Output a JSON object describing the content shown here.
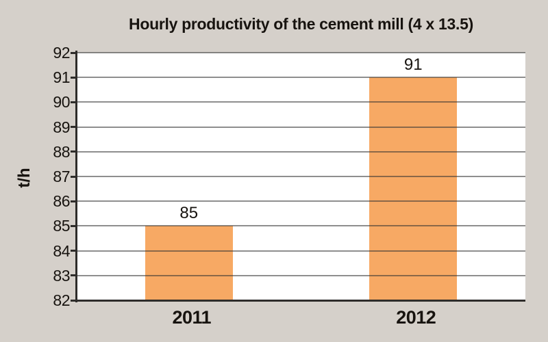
{
  "chart_data": {
    "type": "bar",
    "title": "Hourly productivity of the cement mill (4 x 13.5)",
    "xlabel": "",
    "ylabel": "t/h",
    "categories": [
      "2011",
      "2012"
    ],
    "values": [
      85,
      91
    ],
    "value_labels": [
      "85",
      "91"
    ],
    "ylim": [
      82,
      92
    ],
    "ytick_step": 1,
    "yticks": [
      92,
      91,
      90,
      89,
      88,
      87,
      86,
      85,
      84,
      83,
      82
    ],
    "grid": "horizontal-only",
    "legend": "none",
    "colors": {
      "background": "#d5d0ca",
      "plot_background": "#ffffff",
      "bar": "#f7a964",
      "gridline": "rgba(50,50,50,0.55)",
      "axis": "#2e2c2a",
      "text": "#17130f"
    }
  }
}
